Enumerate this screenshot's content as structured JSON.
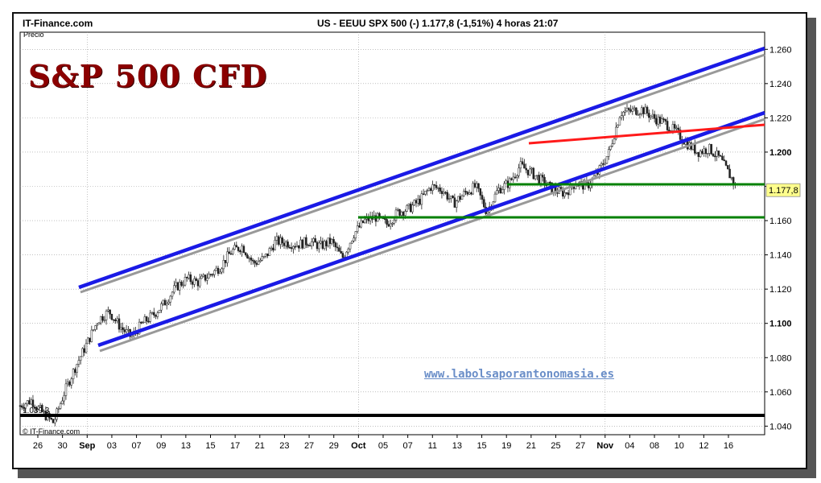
{
  "header": {
    "brand": "IT-Finance.com",
    "info": "US - EEUU SPX 500 (-)   1.177,8 (-1,51%)   4 horas  21:07"
  },
  "chart_title": "S&P 500 CFD",
  "price_label": "Precio",
  "watermark_url": "www.labolsaporantonomasia.es",
  "copyright": "© IT-Finance.com",
  "chart_data": {
    "type": "candlestick",
    "ylim": [
      1035,
      1270
    ],
    "y_ticks": [
      1040,
      1060,
      1080,
      1100,
      1120,
      1140,
      1160,
      1180,
      1200,
      1220,
      1240,
      1260
    ],
    "y_tick_labels": [
      "1.040",
      "1.060",
      "1.080",
      "1.100",
      "1.120",
      "1.140",
      "1.160",
      "1.180",
      "1.200",
      "1.220",
      "1.240",
      "1.260"
    ],
    "bold_tick_labels": [
      "1.100",
      "1.200"
    ],
    "x_tick_labels": [
      "26",
      "30",
      "Sep",
      "03",
      "07",
      "09",
      "13",
      "15",
      "17",
      "21",
      "23",
      "27",
      "29",
      "Oct",
      "05",
      "07",
      "11",
      "13",
      "15",
      "19",
      "21",
      "25",
      "27",
      "Nov",
      "04",
      "08",
      "10",
      "12",
      "16"
    ],
    "month_labels": [
      "Sep",
      "Oct",
      "Nov"
    ],
    "last_price": 1177.8,
    "last_price_label": "1.177,8",
    "low_marker": 1039.3,
    "low_marker_label": "1.039,3",
    "price_path": [
      {
        "x": 26,
        "y": 1052
      },
      {
        "x": 28,
        "y": 1055
      },
      {
        "x": 30,
        "y": 1048
      },
      {
        "x": 32,
        "y": 1042
      },
      {
        "x": 34,
        "y": 1060
      },
      {
        "x": 36,
        "y": 1075
      },
      {
        "x": 38,
        "y": 1088
      },
      {
        "x": 40,
        "y": 1102
      },
      {
        "x": 42,
        "y": 1107
      },
      {
        "x": 44,
        "y": 1098
      },
      {
        "x": 46,
        "y": 1092
      },
      {
        "x": 48,
        "y": 1100
      },
      {
        "x": 50,
        "y": 1105
      },
      {
        "x": 52,
        "y": 1112
      },
      {
        "x": 54,
        "y": 1121
      },
      {
        "x": 56,
        "y": 1126
      },
      {
        "x": 58,
        "y": 1124
      },
      {
        "x": 60,
        "y": 1128
      },
      {
        "x": 62,
        "y": 1133
      },
      {
        "x": 64,
        "y": 1142
      },
      {
        "x": 66,
        "y": 1145
      },
      {
        "x": 68,
        "y": 1135
      },
      {
        "x": 70,
        "y": 1138
      },
      {
        "x": 72,
        "y": 1148
      },
      {
        "x": 74,
        "y": 1147
      },
      {
        "x": 76,
        "y": 1146
      },
      {
        "x": 78,
        "y": 1148
      },
      {
        "x": 80,
        "y": 1145
      },
      {
        "x": 82,
        "y": 1148
      },
      {
        "x": 84,
        "y": 1138
      },
      {
        "x": 86,
        "y": 1152
      },
      {
        "x": 88,
        "y": 1160
      },
      {
        "x": 90,
        "y": 1162
      },
      {
        "x": 92,
        "y": 1158
      },
      {
        "x": 94,
        "y": 1165
      },
      {
        "x": 96,
        "y": 1167
      },
      {
        "x": 98,
        "y": 1172
      },
      {
        "x": 100,
        "y": 1180
      },
      {
        "x": 102,
        "y": 1178
      },
      {
        "x": 104,
        "y": 1170
      },
      {
        "x": 106,
        "y": 1176
      },
      {
        "x": 108,
        "y": 1180
      },
      {
        "x": 110,
        "y": 1165
      },
      {
        "x": 112,
        "y": 1178
      },
      {
        "x": 114,
        "y": 1182
      },
      {
        "x": 116,
        "y": 1192
      },
      {
        "x": 118,
        "y": 1188
      },
      {
        "x": 120,
        "y": 1183
      },
      {
        "x": 122,
        "y": 1178
      },
      {
        "x": 124,
        "y": 1176
      },
      {
        "x": 126,
        "y": 1182
      },
      {
        "x": 128,
        "y": 1180
      },
      {
        "x": 130,
        "y": 1188
      },
      {
        "x": 132,
        "y": 1200
      },
      {
        "x": 134,
        "y": 1223
      },
      {
        "x": 136,
        "y": 1224
      },
      {
        "x": 138,
        "y": 1225
      },
      {
        "x": 140,
        "y": 1220
      },
      {
        "x": 142,
        "y": 1217
      },
      {
        "x": 144,
        "y": 1212
      },
      {
        "x": 146,
        "y": 1205
      },
      {
        "x": 148,
        "y": 1200
      },
      {
        "x": 150,
        "y": 1202
      },
      {
        "x": 152,
        "y": 1196
      },
      {
        "x": 154,
        "y": 1185
      },
      {
        "x": 155,
        "y": 1177.8
      }
    ]
  },
  "colors": {
    "channel": "#1a1ae6",
    "channel_shadow": "#999999",
    "resistance": "#ff1a1a",
    "support": "#008000",
    "candles": "#222222",
    "grid": "#9a9a9a",
    "title": "#8b0000",
    "watermark": "#6a8ec8"
  }
}
